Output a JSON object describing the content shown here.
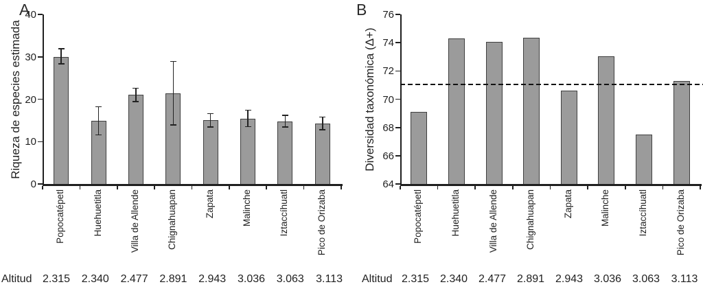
{
  "figure_title": "",
  "colors": {
    "bar_fill": "#9b9b9b",
    "bar_border": "#3f3f3f",
    "axis": "#1f1f1f",
    "reference_line": "#111111",
    "background": "#ffffff"
  },
  "chart_data": [
    {
      "type": "bar",
      "panel_label": "A",
      "title": "",
      "xlabel": "",
      "ylabel": "Riqueza de especies estimada",
      "ylim": [
        0,
        40
      ],
      "yticks": [
        0,
        10,
        20,
        30,
        40
      ],
      "grid": false,
      "legend": "none",
      "categories": [
        "Popocatépetl",
        "Huehuetitla",
        "Villa de Allende",
        "Chignahuapan",
        "Zapata",
        "Malinche",
        "Iztaccíhuatl",
        "Pico de Orizaba"
      ],
      "values": [
        30.0,
        14.9,
        21.0,
        21.4,
        15.0,
        15.4,
        14.8,
        14.2
      ],
      "error_high": [
        31.9,
        18.2,
        22.6,
        28.9,
        16.6,
        17.4,
        16.2,
        15.8
      ],
      "error_low": [
        28.3,
        11.6,
        19.4,
        13.9,
        13.4,
        13.5,
        13.4,
        12.8
      ],
      "altitude_row": {
        "label": "Altitud",
        "values": [
          "2.315",
          "2.340",
          "2.477",
          "2.891",
          "2.943",
          "3.036",
          "3.063",
          "3.113"
        ]
      }
    },
    {
      "type": "bar",
      "panel_label": "B",
      "title": "",
      "xlabel": "",
      "ylabel": "Diversidad taxonómica (Δ+)",
      "ylim": [
        64,
        76
      ],
      "yticks": [
        64,
        66,
        68,
        70,
        72,
        74,
        76
      ],
      "grid": false,
      "legend": "none",
      "categories": [
        "Popocatépetl",
        "Huehuetitla",
        "Villa de Allende",
        "Chignahuapan",
        "Zapata",
        "Malinche",
        "Iztaccíhuatl",
        "Pico de Orizaba"
      ],
      "values": [
        69.1,
        74.3,
        74.05,
        74.35,
        70.6,
        73.05,
        67.5,
        71.3
      ],
      "reference_line_y": 71.05,
      "altitude_row": {
        "label": "Altitud",
        "values": [
          "2.315",
          "2.340",
          "2.477",
          "2.891",
          "2.943",
          "3.036",
          "3.063",
          "3.113"
        ]
      }
    }
  ]
}
